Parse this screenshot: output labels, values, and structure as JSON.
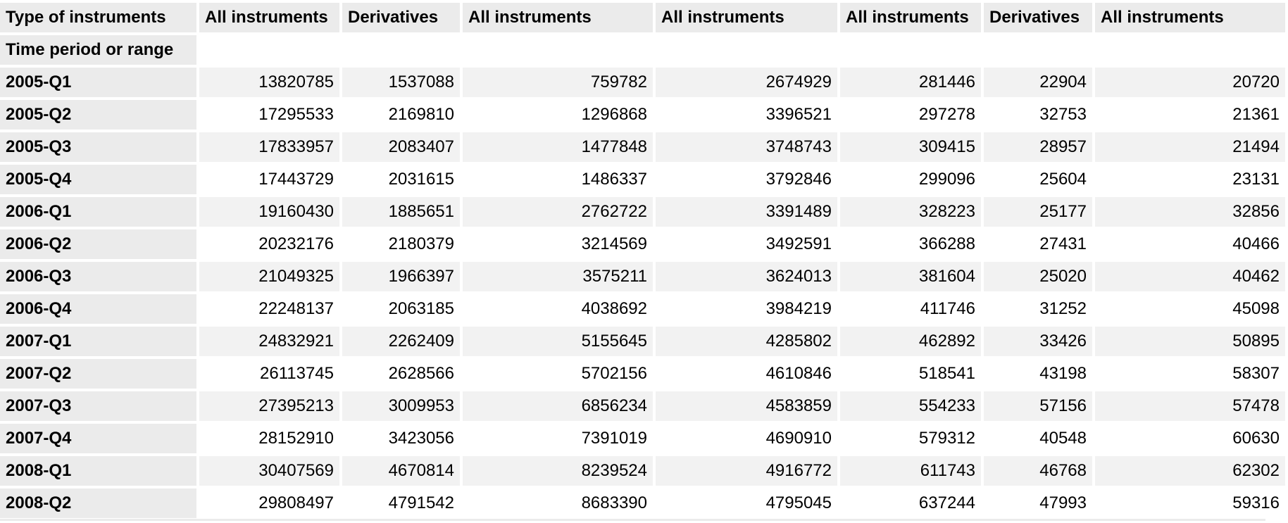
{
  "table": {
    "corner_label": "Type of instruments",
    "row_header_label": "Time period or range",
    "columns": [
      "All instruments",
      "Derivatives",
      "All instruments",
      "All instruments",
      "All instruments",
      "Derivatives",
      "All instruments"
    ],
    "rows": [
      {
        "period": "2005-Q1",
        "values": [
          "13820785",
          "1537088",
          "759782",
          "2674929",
          "281446",
          "22904",
          "20720"
        ]
      },
      {
        "period": "2005-Q2",
        "values": [
          "17295533",
          "2169810",
          "1296868",
          "3396521",
          "297278",
          "32753",
          "21361"
        ]
      },
      {
        "period": "2005-Q3",
        "values": [
          "17833957",
          "2083407",
          "1477848",
          "3748743",
          "309415",
          "28957",
          "21494"
        ]
      },
      {
        "period": "2005-Q4",
        "values": [
          "17443729",
          "2031615",
          "1486337",
          "3792846",
          "299096",
          "25604",
          "23131"
        ]
      },
      {
        "period": "2006-Q1",
        "values": [
          "19160430",
          "1885651",
          "2762722",
          "3391489",
          "328223",
          "25177",
          "32856"
        ]
      },
      {
        "period": "2006-Q2",
        "values": [
          "20232176",
          "2180379",
          "3214569",
          "3492591",
          "366288",
          "27431",
          "40466"
        ]
      },
      {
        "period": "2006-Q3",
        "values": [
          "21049325",
          "1966397",
          "3575211",
          "3624013",
          "381604",
          "25020",
          "40462"
        ]
      },
      {
        "period": "2006-Q4",
        "values": [
          "22248137",
          "2063185",
          "4038692",
          "3984219",
          "411746",
          "31252",
          "45098"
        ]
      },
      {
        "period": "2007-Q1",
        "values": [
          "24832921",
          "2262409",
          "5155645",
          "4285802",
          "462892",
          "33426",
          "50895"
        ]
      },
      {
        "period": "2007-Q2",
        "values": [
          "26113745",
          "2628566",
          "5702156",
          "4610846",
          "518541",
          "43198",
          "58307"
        ]
      },
      {
        "period": "2007-Q3",
        "values": [
          "27395213",
          "3009953",
          "6856234",
          "4583859",
          "554233",
          "57156",
          "57478"
        ]
      },
      {
        "period": "2007-Q4",
        "values": [
          "28152910",
          "3423056",
          "7391019",
          "4690910",
          "579312",
          "40548",
          "60630"
        ]
      },
      {
        "period": "2008-Q1",
        "values": [
          "30407569",
          "4670814",
          "8239524",
          "4916772",
          "611743",
          "46768",
          "62302"
        ]
      },
      {
        "period": "2008-Q2",
        "values": [
          "29808497",
          "4791542",
          "8683390",
          "4795045",
          "637244",
          "47993",
          "59316"
        ]
      }
    ]
  }
}
